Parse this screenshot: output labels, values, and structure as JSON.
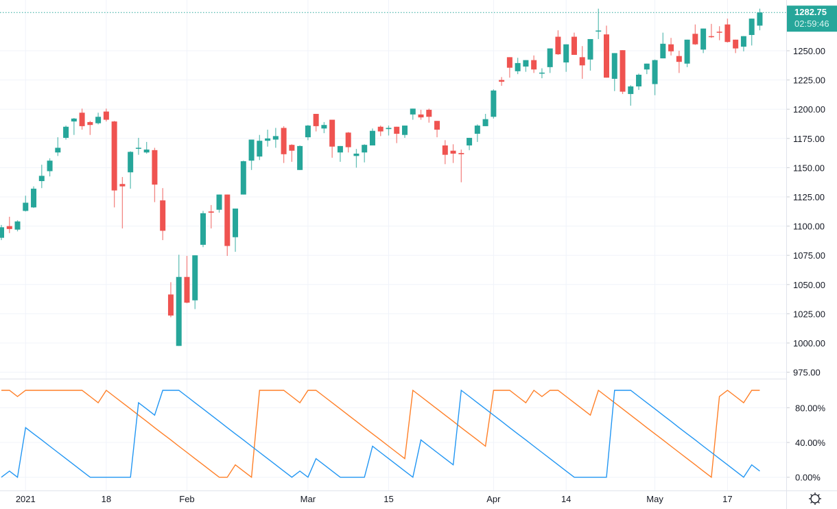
{
  "chart_data": [
    {
      "type": "candlestick",
      "title": "",
      "y_axis": {
        "ticks": [
          "975.00",
          "1000.00",
          "1025.00",
          "1050.00",
          "1075.00",
          "1100.00",
          "1125.00",
          "1150.00",
          "1175.00",
          "1200.00",
          "1225.00",
          "1250.00"
        ],
        "range": [
          970,
          1290
        ]
      },
      "x_axis": {
        "labels": [
          {
            "text": "2021",
            "index": 3
          },
          {
            "text": "18",
            "index": 13
          },
          {
            "text": "Feb",
            "index": 23
          },
          {
            "text": "Mar",
            "index": 38
          },
          {
            "text": "15",
            "index": 48
          },
          {
            "text": "Apr",
            "index": 61
          },
          {
            "text": "14",
            "index": 70
          },
          {
            "text": "May",
            "index": 81
          },
          {
            "text": "17",
            "index": 90
          }
        ]
      },
      "last_price": {
        "value": "1282.75",
        "countdown": "02:59:46",
        "numeric": 1282.75
      },
      "colors": {
        "up": "#26a69a",
        "down": "#ef5350",
        "grid": "#f0f3fa"
      },
      "ohlc_fields": [
        "open",
        "high",
        "low",
        "close"
      ],
      "candles": [
        [
          1090,
          1101,
          1088,
          1099
        ],
        [
          1100,
          1108,
          1094,
          1097.5
        ],
        [
          1097,
          1105,
          1095.5,
          1104
        ],
        [
          1113,
          1126,
          1112.5,
          1120
        ],
        [
          1116,
          1134,
          1115.5,
          1132
        ],
        [
          1138.5,
          1152.5,
          1132.5,
          1143
        ],
        [
          1147,
          1158,
          1142.5,
          1156
        ],
        [
          1163,
          1176,
          1160,
          1167
        ],
        [
          1175.5,
          1186,
          1174,
          1185
        ],
        [
          1189.5,
          1192.5,
          1178,
          1192
        ],
        [
          1197,
          1200.5,
          1182.5,
          1185.5
        ],
        [
          1189,
          1190,
          1178,
          1186.5
        ],
        [
          1188,
          1197,
          1187,
          1193.5
        ],
        [
          1198,
          1200.5,
          1189.5,
          1191
        ],
        [
          1189.5,
          1190,
          1116,
          1130.5
        ],
        [
          1136,
          1142,
          1098,
          1134
        ],
        [
          1146,
          1164,
          1132,
          1163.5
        ],
        [
          1166.5,
          1175.5,
          1161,
          1167
        ],
        [
          1163,
          1172,
          1162,
          1165.5
        ],
        [
          1165,
          1167,
          1120.5,
          1135.5
        ],
        [
          1122,
          1132.5,
          1088,
          1096
        ],
        [
          1041.5,
          1052,
          1022,
          1023.5
        ],
        [
          997.5,
          1075.5,
          997.5,
          1056.5
        ],
        [
          1056.5,
          1074.5,
          1034,
          1034.5
        ],
        [
          1036.5,
          1075,
          1029,
          1075
        ],
        [
          1084,
          1113,
          1082,
          1111
        ],
        [
          1112.5,
          1118,
          1098,
          1111.5
        ],
        [
          1114,
          1127,
          1111.5,
          1127
        ],
        [
          1127,
          1127,
          1074.5,
          1083
        ],
        [
          1090.5,
          1115,
          1078,
          1115
        ],
        [
          1127,
          1156,
          1127,
          1155.5
        ],
        [
          1156,
          1174,
          1148,
          1174
        ],
        [
          1159.5,
          1178,
          1156.5,
          1173
        ],
        [
          1173,
          1182.5,
          1168,
          1175
        ],
        [
          1174,
          1184,
          1167,
          1177
        ],
        [
          1184,
          1185.5,
          1154,
          1161.5
        ],
        [
          1169.5,
          1170,
          1155,
          1164.5
        ],
        [
          1148,
          1169,
          1148,
          1168.5
        ],
        [
          1176,
          1186.5,
          1173.5,
          1186
        ],
        [
          1196,
          1196,
          1181,
          1185.5
        ],
        [
          1183.5,
          1189,
          1179.5,
          1186.5
        ],
        [
          1191,
          1191,
          1158.5,
          1168
        ],
        [
          1163,
          1168.5,
          1155,
          1168.5
        ],
        [
          1180,
          1180.5,
          1163,
          1167.5
        ],
        [
          1160,
          1166,
          1150,
          1162
        ],
        [
          1163,
          1170,
          1154.5,
          1169.5
        ],
        [
          1169,
          1183.5,
          1169,
          1181.5
        ],
        [
          1185,
          1186,
          1177,
          1181
        ],
        [
          1183,
          1186,
          1177.5,
          1184
        ],
        [
          1185,
          1185,
          1171,
          1179
        ],
        [
          1178,
          1186,
          1175.5,
          1186
        ],
        [
          1195.5,
          1200.5,
          1191,
          1200.5
        ],
        [
          1195.5,
          1199.5,
          1191,
          1193
        ],
        [
          1199.5,
          1200.5,
          1188.5,
          1193.5
        ],
        [
          1190,
          1190,
          1176,
          1182.5
        ],
        [
          1169,
          1173.5,
          1153,
          1161
        ],
        [
          1164.5,
          1170,
          1154,
          1162
        ],
        [
          1162.5,
          1165.5,
          1137.5,
          1161.5
        ],
        [
          1169,
          1175.5,
          1165,
          1175.5
        ],
        [
          1179,
          1187,
          1172,
          1186
        ],
        [
          1185.5,
          1196,
          1185.5,
          1191.5
        ],
        [
          1193.5,
          1217,
          1192,
          1216
        ],
        [
          1225,
          1227.5,
          1220,
          1223.5
        ],
        [
          1244.5,
          1244.5,
          1227,
          1235.5
        ],
        [
          1232.5,
          1244,
          1230,
          1239.5
        ],
        [
          1236.5,
          1242,
          1232,
          1242
        ],
        [
          1242,
          1246,
          1231,
          1234
        ],
        [
          1231,
          1235,
          1226.5,
          1231.3
        ],
        [
          1236,
          1252,
          1231,
          1252
        ],
        [
          1262,
          1267.5,
          1246.5,
          1247
        ],
        [
          1240,
          1255.5,
          1232,
          1255.5
        ],
        [
          1262,
          1265.5,
          1246.5,
          1246.5
        ],
        [
          1244.5,
          1254,
          1226,
          1237.5
        ],
        [
          1242.5,
          1260,
          1233,
          1260
        ],
        [
          1266.8,
          1286,
          1260,
          1267.3
        ],
        [
          1264,
          1271.5,
          1227,
          1227
        ],
        [
          1226,
          1248,
          1215.5,
          1248
        ],
        [
          1250.5,
          1250.5,
          1213,
          1215
        ],
        [
          1213,
          1220.5,
          1203,
          1219.5
        ],
        [
          1219.5,
          1230.5,
          1216.5,
          1229.5
        ],
        [
          1234,
          1239,
          1230,
          1239
        ],
        [
          1221.5,
          1242.5,
          1212,
          1242
        ],
        [
          1243.5,
          1265.5,
          1243.5,
          1256
        ],
        [
          1255.5,
          1261,
          1246,
          1249.5
        ],
        [
          1245.5,
          1250,
          1231,
          1240.5
        ],
        [
          1239,
          1259.5,
          1236,
          1259.5
        ],
        [
          1264.5,
          1272.5,
          1255,
          1255.5
        ],
        [
          1251,
          1269,
          1248,
          1269
        ],
        [
          1262.5,
          1273,
          1261,
          1262
        ],
        [
          1266.3,
          1271,
          1259,
          1266
        ],
        [
          1272.5,
          1277.5,
          1257,
          1257.5
        ],
        [
          1259.5,
          1259.5,
          1248,
          1252
        ],
        [
          1253.5,
          1262.5,
          1249.5,
          1262.5
        ],
        [
          1263.5,
          1277.5,
          1254.5,
          1277.5
        ],
        [
          1271.5,
          1286,
          1267.5,
          1282.75
        ]
      ]
    },
    {
      "type": "line",
      "title": "",
      "y_axis": {
        "ticks": [
          "0.00%",
          "40.00%",
          "80.00%"
        ],
        "range": [
          -10,
          110
        ]
      },
      "series": [
        {
          "color": "#ff7f27",
          "values": [
            100,
            100,
            92.9,
            100,
            100,
            100,
            100,
            100,
            100,
            100,
            100,
            92.9,
            85.7,
            100,
            92.9,
            85.7,
            78.6,
            71.4,
            64.3,
            57.1,
            50,
            42.9,
            35.7,
            28.6,
            21.4,
            14.3,
            7.1,
            0,
            0,
            14.3,
            7.1,
            0,
            100,
            100,
            100,
            100,
            92.9,
            85.7,
            100,
            100,
            92.9,
            85.7,
            78.6,
            71.4,
            64.3,
            57.1,
            50,
            42.9,
            35.7,
            28.6,
            21.4,
            100,
            92.9,
            85.7,
            78.6,
            71.4,
            64.3,
            57.1,
            50,
            42.9,
            35.7,
            100,
            100,
            100,
            92.9,
            85.7,
            100,
            92.9,
            100,
            100,
            92.9,
            85.7,
            78.6,
            71.4,
            100,
            92.9,
            85.7,
            78.6,
            71.4,
            64.3,
            57.1,
            50,
            42.9,
            35.7,
            28.6,
            21.4,
            14.3,
            7.1,
            0,
            92.9,
            100,
            92.9,
            85.7,
            100,
            100
          ]
        },
        {
          "color": "#2196f3",
          "values": [
            0,
            7.1,
            0,
            57.1,
            50,
            42.9,
            35.7,
            28.6,
            21.4,
            14.3,
            7.1,
            0,
            0,
            0,
            0,
            0,
            0,
            85.7,
            78.6,
            71.4,
            100,
            100,
            100,
            92.9,
            85.7,
            78.6,
            71.4,
            64.3,
            57.1,
            50,
            42.9,
            35.7,
            28.6,
            21.4,
            14.3,
            7.1,
            0,
            7.1,
            0,
            21.4,
            14.3,
            7.1,
            0,
            0,
            0,
            0,
            35.7,
            28.6,
            21.4,
            14.3,
            7.1,
            0,
            42.9,
            35.7,
            28.6,
            21.4,
            14.3,
            100,
            92.9,
            85.7,
            78.6,
            71.4,
            64.3,
            57.1,
            50,
            42.9,
            35.7,
            28.6,
            21.4,
            14.3,
            7.1,
            0,
            0,
            0,
            0,
            0,
            100,
            100,
            100,
            92.9,
            85.7,
            78.6,
            71.4,
            64.3,
            57.1,
            50,
            42.9,
            35.7,
            28.6,
            21.4,
            14.3,
            7.1,
            0,
            14.3,
            7.1
          ]
        }
      ]
    }
  ],
  "toolbar": {
    "settings_icon": "gear-icon"
  }
}
